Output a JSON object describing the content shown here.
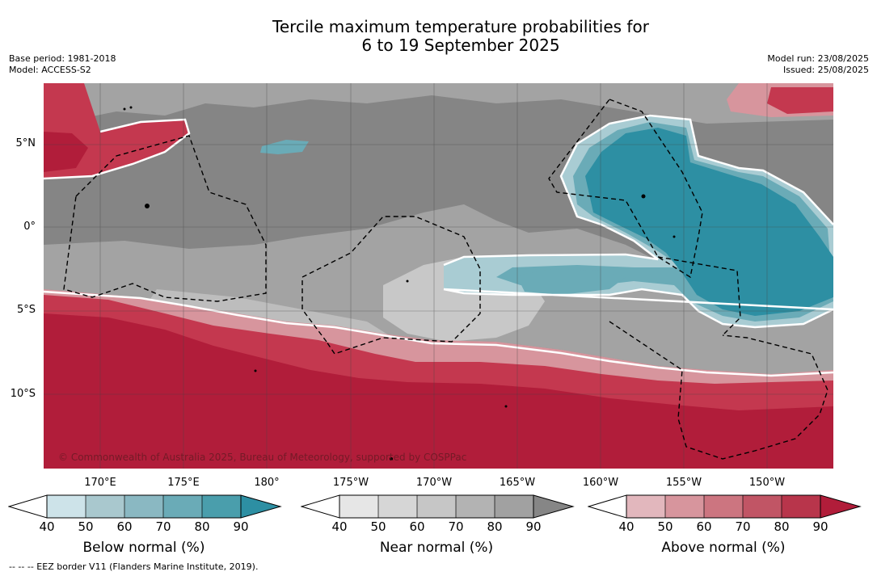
{
  "title": {
    "line1": "Tercile maximum temperature probabilities for",
    "line2": "6 to 19 September 2025"
  },
  "meta_left": {
    "base_period": "Base period: 1981-2018",
    "model": "Model: ACCESS-S2"
  },
  "meta_right": {
    "model_run": "Model run: 23/08/2025",
    "issued": "Issued: 25/08/2025"
  },
  "map": {
    "lat_labels": [
      "5°N",
      "0°",
      "5°S",
      "10°S"
    ],
    "lon_labels": [
      "170°E",
      "175°E",
      "180°",
      "175°W",
      "170°W",
      "165°W",
      "160°W",
      "155°W",
      "150°W"
    ],
    "copyright": "© Commonwealth of Australia 2025, Bureau of Meteorology, supported by COSPPac"
  },
  "colorbars": [
    {
      "label": "Below normal (%)",
      "ticks": [
        "40",
        "50",
        "60",
        "70",
        "80",
        "90"
      ],
      "colors": [
        "#cde3e9",
        "#a9c8ce",
        "#8ab8c2",
        "#6aabb7",
        "#4a9eac",
        "#2d8fa3"
      ]
    },
    {
      "label": "Near normal (%)",
      "ticks": [
        "40",
        "50",
        "60",
        "70",
        "80",
        "90"
      ],
      "colors": [
        "#e6e6e6",
        "#d6d6d6",
        "#c6c6c6",
        "#b3b3b3",
        "#a1a1a1",
        "#868686"
      ]
    },
    {
      "label": "Above normal (%)",
      "ticks": [
        "40",
        "50",
        "60",
        "70",
        "80",
        "90"
      ],
      "colors": [
        "#e2b7bd",
        "#d7959d",
        "#cc7580",
        "#c15565",
        "#b8354b",
        "#b11d3a"
      ]
    }
  ],
  "footnote": "--  --  -- EEZ border V11 (Flanders Marine Institute, 2019).",
  "palette": {
    "above_strong": "#b11d3a",
    "above_mid": "#c4384f",
    "above_light": "#d7959d",
    "near_dark": "#858585",
    "near_mid": "#a3a3a3",
    "near_light": "#c8c8c8",
    "below_strong": "#2d8fa3",
    "below_mid": "#6aabb7",
    "below_light": "#a9ccd3"
  }
}
